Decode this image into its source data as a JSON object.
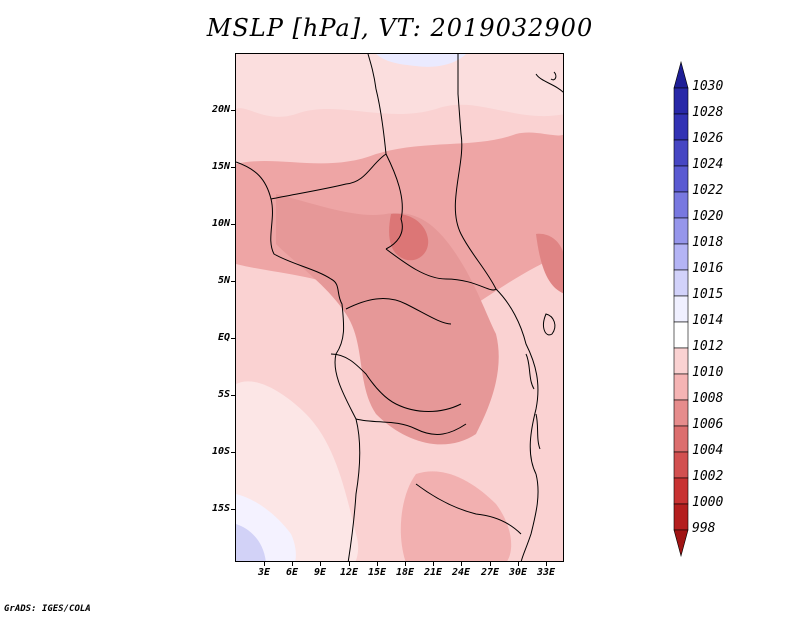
{
  "title": "MSLP [hPa], VT: 2019032900",
  "credit": "GrADS: IGES/COLA",
  "lat_labels": [
    "20N",
    "15N",
    "10N",
    "5N",
    "EQ",
    "5S",
    "10S",
    "15S"
  ],
  "lon_labels": [
    "3E",
    "6E",
    "9E",
    "12E",
    "15E",
    "18E",
    "21E",
    "24E",
    "27E",
    "30E",
    "33E"
  ],
  "colorbar": {
    "levels": [
      "1030",
      "1028",
      "1026",
      "1024",
      "1022",
      "1020",
      "1018",
      "1016",
      "1015",
      "1014",
      "1012",
      "1010",
      "1008",
      "1006",
      "1004",
      "1002",
      "1000",
      "998"
    ],
    "colors": [
      "#1e1e96",
      "#2828a8",
      "#3232b4",
      "#4646c3",
      "#5a5ad2",
      "#7878e0",
      "#9696eb",
      "#b4b4f5",
      "#d2d2fa",
      "#f0f0ff",
      "#ffffff",
      "#fad2d2",
      "#f5b4b4",
      "#e68c8c",
      "#dc6e6e",
      "#d25050",
      "#c83232",
      "#b41e1e",
      "#a01414"
    ]
  }
}
